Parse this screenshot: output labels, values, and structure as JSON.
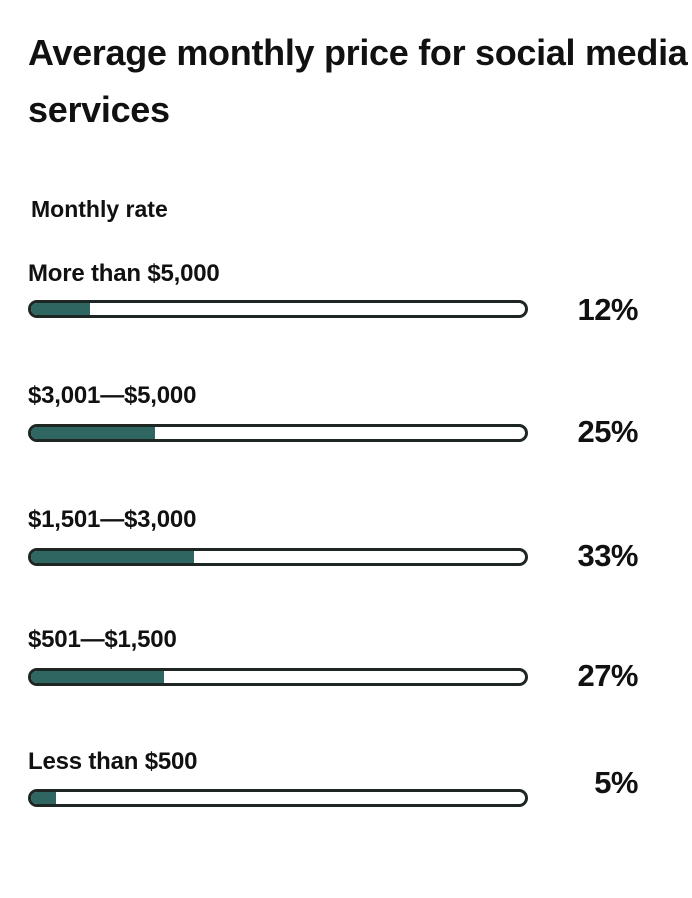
{
  "chart_data": {
    "type": "bar",
    "orientation": "horizontal",
    "title": "Average monthly price for social media services",
    "subtitle": "Monthly rate",
    "categories": [
      "More than $5,000",
      "$3,001—$5,000",
      "$1,501—$3,000",
      "$501—$1,500",
      "Less than $500"
    ],
    "values": [
      12,
      25,
      33,
      27,
      5
    ],
    "value_labels": [
      "12%",
      "25%",
      "33%",
      "27%",
      "5%"
    ],
    "unit": "%",
    "xlim": [
      0,
      100
    ],
    "grid": false,
    "colors": {
      "fill": "#2f6661",
      "track_border": "#1d2623",
      "track": "#ffffff"
    }
  }
}
